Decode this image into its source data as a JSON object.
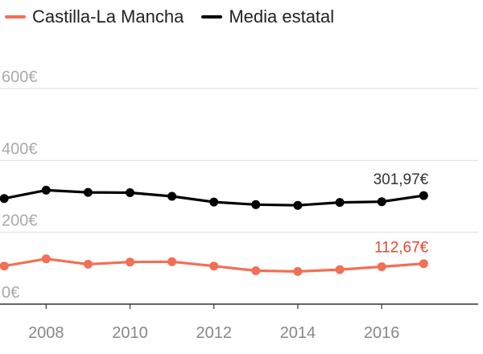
{
  "legend": [
    {
      "label": "Castilla-La Mancha",
      "color": "#f26f55"
    },
    {
      "label": "Media estatal",
      "color": "#000000"
    }
  ],
  "chart_data": {
    "type": "line",
    "x": [
      2007,
      2008,
      2009,
      2010,
      2011,
      2012,
      2013,
      2014,
      2015,
      2016,
      2017
    ],
    "xticks": [
      2008,
      2010,
      2012,
      2014,
      2016
    ],
    "xtick_labels": [
      "2008",
      "2010",
      "2012",
      "2014",
      "2016"
    ],
    "yticks": [
      0,
      200,
      400,
      600
    ],
    "ytick_labels": [
      "0€",
      "200€",
      "400€",
      "600€"
    ],
    "ylim": [
      0,
      600
    ],
    "xlim": [
      2006.9,
      2018.3
    ],
    "grid": true,
    "legend_position": "top-left",
    "series": [
      {
        "name": "Castilla-La Mancha",
        "color": "#f26f55",
        "values": [
          106,
          126,
          111,
          117,
          118,
          106,
          93,
          91,
          96,
          104,
          112.67
        ],
        "end_label": "112,67€"
      },
      {
        "name": "Media estatal",
        "color": "#000000",
        "values": [
          294,
          317,
          311,
          310,
          300,
          284,
          277,
          275,
          283,
          285,
          301.97
        ],
        "end_label": "301,97€"
      }
    ]
  }
}
